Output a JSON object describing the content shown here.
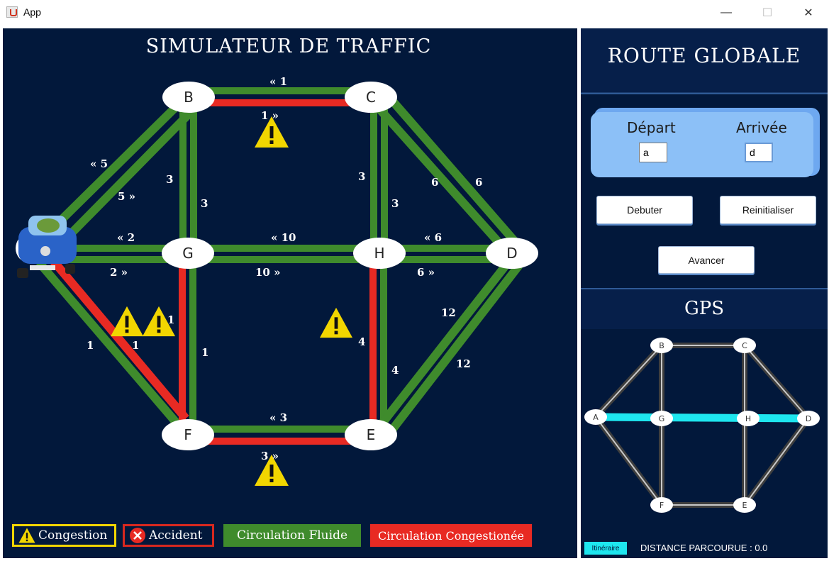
{
  "window": {
    "title": "App",
    "minimize": "—",
    "maximize": "☐",
    "close": "✕"
  },
  "simulator": {
    "title": "SIMULATEUR DE TRAFFIC",
    "nodes": [
      "B",
      "C",
      "G",
      "H",
      "D",
      "F",
      "E"
    ],
    "edge_labels": {
      "bc_top": "1",
      "bc_bottom": "1",
      "ab_top": "5",
      "ab_bottom": "5",
      "bg_left": "3",
      "bg_right": "3",
      "ch_left": "3",
      "ch_right": "3",
      "cd_left": "6",
      "cd_right": "6",
      "ag_top": "2",
      "ag_bottom": "2",
      "gh_top": "10",
      "gh_bottom": "10",
      "hd_top": "6",
      "hd_bottom": "6",
      "af_left": "1",
      "af_right": "1",
      "gf_left": "1",
      "gf_right": "1",
      "he_left": "4",
      "he_right": "4",
      "ed_left": "12",
      "ed_right": "12",
      "fe_top": "3",
      "fe_bottom": "3"
    }
  },
  "legend": {
    "congestion": "Congestion",
    "accident": "Accident",
    "fluide": "Circulation Fluide",
    "congestionee": "Circulation Congestionée"
  },
  "sidebar": {
    "title": "ROUTE GLOBALE",
    "depart_label": "Départ",
    "arrivee_label": "Arrivée",
    "depart_value": "a",
    "arrivee_value": "d",
    "start_button": "Debuter",
    "reset_button": "Reinitialiser",
    "advance_button": "Avancer",
    "gps_title": "GPS",
    "gps_nodes": [
      "B",
      "C",
      "A",
      "G",
      "H",
      "D",
      "F",
      "E"
    ],
    "itinerary_button": "Itinéraire",
    "distance_text": "DISTANCE PARCOURUE : 0.0"
  },
  "colors": {
    "background": "#02183b",
    "road_fluid": "#3f8b2c",
    "road_congested": "#e82a23",
    "gps_route": "#1ee6ef",
    "warning": "#f2d600"
  }
}
